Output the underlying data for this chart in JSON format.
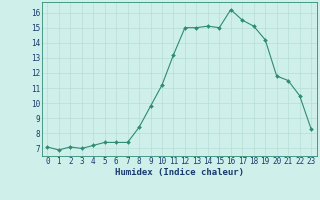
{
  "x": [
    0,
    1,
    2,
    3,
    4,
    5,
    6,
    7,
    8,
    9,
    10,
    11,
    12,
    13,
    14,
    15,
    16,
    17,
    18,
    19,
    20,
    21,
    22,
    23
  ],
  "y": [
    7.1,
    6.9,
    7.1,
    7.0,
    7.2,
    7.4,
    7.4,
    7.4,
    8.4,
    9.8,
    11.2,
    13.2,
    15.0,
    15.0,
    15.1,
    15.0,
    16.2,
    15.5,
    15.1,
    14.2,
    11.8,
    11.5,
    10.5,
    8.3
  ],
  "line_color": "#2e8b74",
  "marker": "D",
  "marker_size": 2.0,
  "bg_color": "#cff0ea",
  "grid_color": "#b8ddd7",
  "xlabel": "Humidex (Indice chaleur)",
  "ylim": [
    6.5,
    16.7
  ],
  "xlim": [
    -0.5,
    23.5
  ],
  "yticks": [
    7,
    8,
    9,
    10,
    11,
    12,
    13,
    14,
    15,
    16
  ],
  "xticks": [
    0,
    1,
    2,
    3,
    4,
    5,
    6,
    7,
    8,
    9,
    10,
    11,
    12,
    13,
    14,
    15,
    16,
    17,
    18,
    19,
    20,
    21,
    22,
    23
  ],
  "tick_fontsize": 5.5,
  "xlabel_fontsize": 6.5
}
